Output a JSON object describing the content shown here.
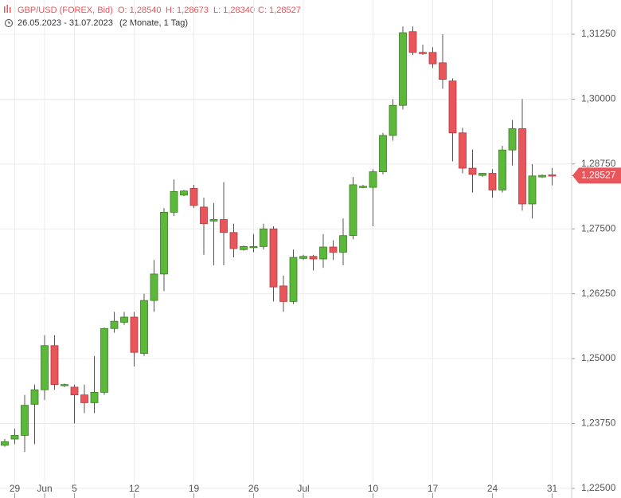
{
  "header": {
    "instrument": "GBP/USD (FOREX, Bid)",
    "open": "O: 1,28540",
    "high": "H: 1,28673",
    "low": "L: 1,28340",
    "close": "C: 1,28527",
    "range": "26.05.2023 - 31.07.2023",
    "span": "(2 Monate, 1 Tag)"
  },
  "chart_data": {
    "type": "candlestick",
    "categories": [
      null,
      "29",
      null,
      null,
      "Jun",
      null,
      null,
      "5",
      null,
      null,
      null,
      null,
      null,
      "12",
      null,
      null,
      null,
      null,
      null,
      "19",
      null,
      null,
      null,
      null,
      null,
      "26",
      null,
      null,
      null,
      null,
      "Jul",
      null,
      null,
      null,
      null,
      null,
      null,
      "10",
      null,
      null,
      null,
      null,
      null,
      "17",
      null,
      null,
      null,
      null,
      null,
      "24",
      null,
      null,
      null,
      null,
      null,
      "31"
    ],
    "up_color": "#5cb83a",
    "down_color": "#e8555a",
    "series": [
      {
        "name": "GBP/USD",
        "open": [
          1.2333,
          1.2345,
          1.2352,
          1.2412,
          1.244,
          1.2525,
          1.2448,
          1.2445,
          1.243,
          1.2415,
          1.2435,
          1.2558,
          1.257,
          1.258,
          1.251,
          1.2612,
          1.2663,
          1.2782,
          1.2815,
          1.2828,
          1.2792,
          1.2765,
          1.2768,
          1.2743,
          1.271,
          1.2715,
          1.2716,
          1.275,
          1.264,
          1.261,
          1.2693,
          1.2697,
          1.2692,
          1.2715,
          1.2705,
          1.2737,
          1.283,
          1.283,
          1.286,
          1.293,
          1.2988,
          1.313,
          1.309,
          1.309,
          1.307,
          1.3035,
          1.2935,
          1.2867,
          1.2853,
          1.2857,
          1.2825,
          1.2902,
          1.2943,
          1.2798,
          1.285,
          1.2854
        ],
        "high": [
          1.2345,
          1.2365,
          1.243,
          1.245,
          1.2545,
          1.2545,
          1.2452,
          1.245,
          1.245,
          1.2505,
          1.256,
          1.259,
          1.259,
          1.259,
          1.2625,
          1.269,
          1.279,
          1.2845,
          1.2825,
          1.2835,
          1.281,
          1.28,
          1.284,
          1.276,
          1.2718,
          1.274,
          1.276,
          1.2755,
          1.266,
          1.271,
          1.27,
          1.27,
          1.274,
          1.2728,
          1.277,
          1.285,
          1.2835,
          1.2865,
          1.2935,
          1.3,
          1.314,
          1.314,
          1.3105,
          1.31,
          1.3125,
          1.304,
          1.2945,
          1.2903,
          1.2858,
          1.2865,
          1.291,
          1.296,
          1.3,
          1.2875,
          1.2855,
          1.28673
        ],
        "low": [
          1.233,
          1.2335,
          1.232,
          1.2335,
          1.242,
          1.244,
          1.2445,
          1.2375,
          1.2395,
          1.2395,
          1.243,
          1.255,
          1.2565,
          1.2485,
          1.2505,
          1.259,
          1.263,
          1.2775,
          1.2813,
          1.279,
          1.27,
          1.268,
          1.268,
          1.2695,
          1.2708,
          1.2705,
          1.271,
          1.261,
          1.259,
          1.2605,
          1.269,
          1.267,
          1.2675,
          1.269,
          1.268,
          1.273,
          1.2828,
          1.2755,
          1.2855,
          1.292,
          1.298,
          1.3085,
          1.3085,
          1.306,
          1.302,
          1.288,
          1.2857,
          1.282,
          1.285,
          1.281,
          1.282,
          1.2872,
          1.2785,
          1.277,
          1.2848,
          1.2834
        ],
        "close": [
          1.234,
          1.2352,
          1.241,
          1.244,
          1.2525,
          1.245,
          1.245,
          1.243,
          1.2415,
          1.2435,
          1.2558,
          1.2572,
          1.258,
          1.2512,
          1.2612,
          1.2663,
          1.2782,
          1.2822,
          1.2823,
          1.2795,
          1.276,
          1.2768,
          1.2743,
          1.2712,
          1.2716,
          1.2716,
          1.275,
          1.2638,
          1.261,
          1.2695,
          1.2697,
          1.2692,
          1.2715,
          1.2705,
          1.2737,
          1.2835,
          1.2832,
          1.286,
          1.293,
          1.2988,
          1.3128,
          1.309,
          1.3088,
          1.3068,
          1.3038,
          1.2935,
          1.2867,
          1.2855,
          1.2857,
          1.2825,
          1.2902,
          1.2943,
          1.2798,
          1.2852,
          1.2853,
          1.28527
        ]
      }
    ],
    "last_price": {
      "value": 1.28527,
      "label": "1,28527"
    },
    "ylim": [
      1.2236,
      1.3191
    ],
    "yticks": [
      {
        "value": 1.225,
        "label": "1,22500"
      },
      {
        "value": 1.2375,
        "label": "1,23750"
      },
      {
        "value": 1.25,
        "label": "1,25000"
      },
      {
        "value": 1.2625,
        "label": "1,26250"
      },
      {
        "value": 1.275,
        "label": "1,27500"
      },
      {
        "value": 1.2875,
        "label": "1,28750"
      },
      {
        "value": 1.3,
        "label": "1,30000"
      },
      {
        "value": 1.3125,
        "label": "1,31250"
      }
    ],
    "grid": true
  }
}
